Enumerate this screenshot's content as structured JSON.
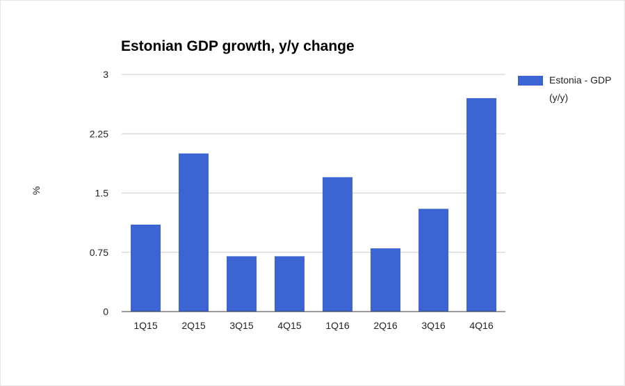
{
  "chart_data": {
    "type": "bar",
    "title": "Estonian GDP growth, y/y change",
    "xlabel": "",
    "ylabel": "%",
    "categories": [
      "1Q15",
      "2Q15",
      "3Q15",
      "4Q15",
      "1Q16",
      "2Q16",
      "3Q16",
      "4Q16"
    ],
    "series": [
      {
        "name": "Estonia - GDP (y/y)",
        "color": "#3c64d2",
        "values": [
          1.1,
          2.0,
          0.7,
          0.7,
          1.7,
          0.8,
          1.3,
          2.7
        ]
      }
    ],
    "ylim": [
      0,
      3
    ],
    "yticks": [
      "0",
      "0.75",
      "1.5",
      "2.25",
      "3"
    ],
    "grid": true,
    "legend_position": "right"
  },
  "legend": {
    "label": "Estonia - GDP (y/y)"
  }
}
